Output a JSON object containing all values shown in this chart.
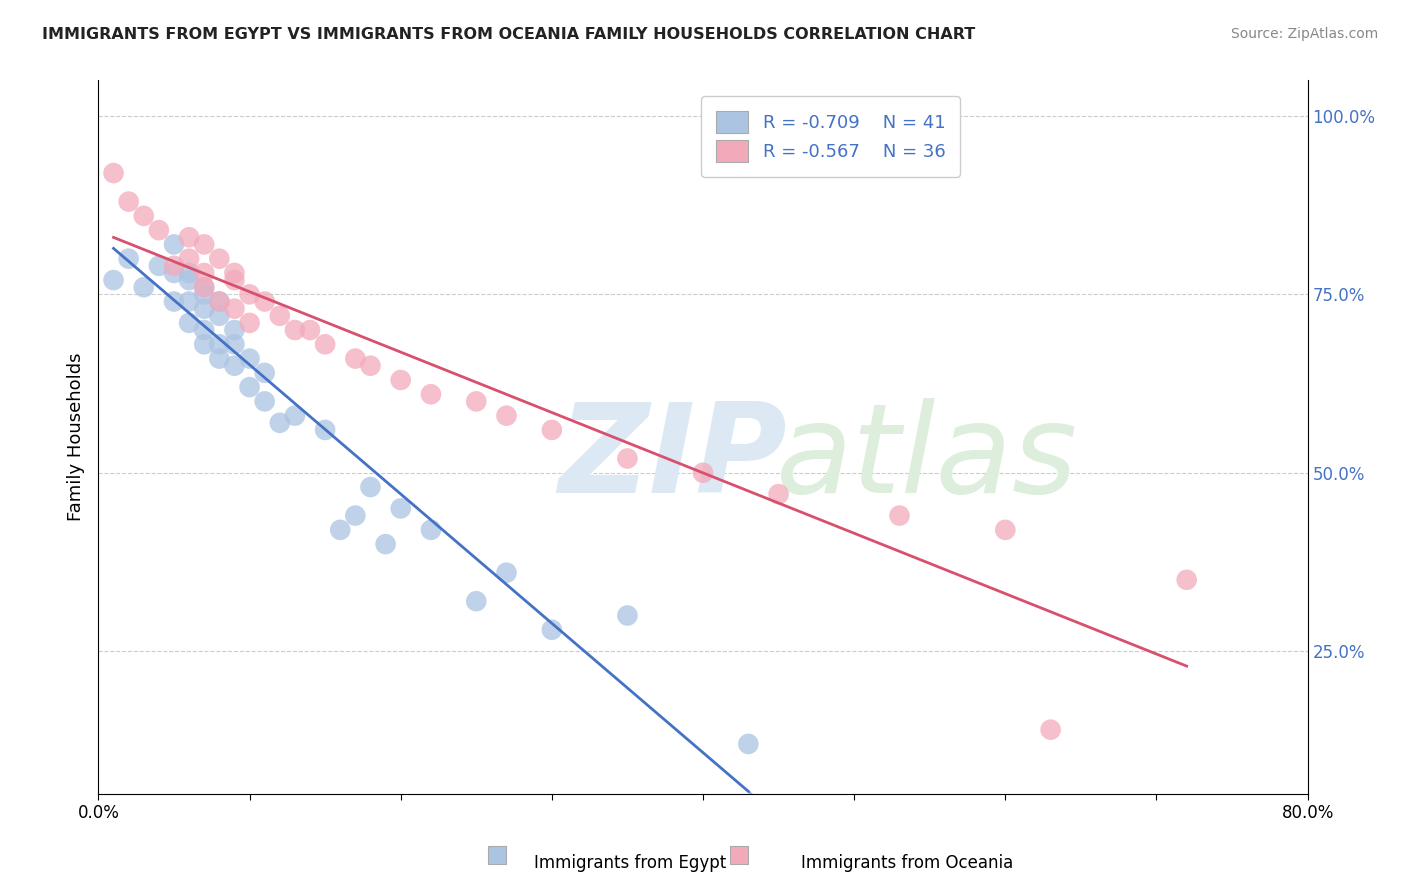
{
  "title": "IMMIGRANTS FROM EGYPT VS IMMIGRANTS FROM OCEANIA FAMILY HOUSEHOLDS CORRELATION CHART",
  "source": "Source: ZipAtlas.com",
  "ylabel": "Family Households",
  "ylabel_right": [
    "100.0%",
    "75.0%",
    "50.0%",
    "25.0%"
  ],
  "ylabel_right_vals": [
    1.0,
    0.75,
    0.5,
    0.25
  ],
  "xlim": [
    0.0,
    0.8
  ],
  "ylim": [
    0.05,
    1.05
  ],
  "egypt_R": -0.709,
  "egypt_N": 41,
  "oceania_R": -0.567,
  "oceania_N": 36,
  "egypt_color": "#aac4e2",
  "oceania_color": "#f2aabb",
  "egypt_line_color": "#4472c4",
  "oceania_line_color": "#d94f6e",
  "legend_label_egypt": "Immigrants from Egypt",
  "legend_label_oceania": "Immigrants from Oceania",
  "background_color": "#ffffff",
  "grid_color": "#cccccc",
  "egypt_x": [
    0.01,
    0.02,
    0.03,
    0.04,
    0.05,
    0.05,
    0.05,
    0.06,
    0.06,
    0.06,
    0.06,
    0.07,
    0.07,
    0.07,
    0.07,
    0.07,
    0.08,
    0.08,
    0.08,
    0.08,
    0.09,
    0.09,
    0.09,
    0.1,
    0.1,
    0.11,
    0.11,
    0.12,
    0.13,
    0.15,
    0.16,
    0.17,
    0.18,
    0.19,
    0.2,
    0.22,
    0.25,
    0.27,
    0.3,
    0.35,
    0.43
  ],
  "egypt_y": [
    0.77,
    0.8,
    0.76,
    0.79,
    0.78,
    0.82,
    0.74,
    0.77,
    0.74,
    0.78,
    0.71,
    0.76,
    0.73,
    0.7,
    0.75,
    0.68,
    0.72,
    0.68,
    0.74,
    0.66,
    0.7,
    0.65,
    0.68,
    0.66,
    0.62,
    0.64,
    0.6,
    0.57,
    0.58,
    0.56,
    0.42,
    0.44,
    0.48,
    0.4,
    0.45,
    0.42,
    0.32,
    0.36,
    0.28,
    0.3,
    0.12
  ],
  "oceania_x": [
    0.01,
    0.02,
    0.03,
    0.04,
    0.05,
    0.06,
    0.06,
    0.07,
    0.07,
    0.07,
    0.08,
    0.08,
    0.09,
    0.09,
    0.09,
    0.1,
    0.1,
    0.11,
    0.12,
    0.13,
    0.14,
    0.15,
    0.17,
    0.18,
    0.2,
    0.22,
    0.25,
    0.27,
    0.3,
    0.35,
    0.4,
    0.45,
    0.53,
    0.6,
    0.63,
    0.72
  ],
  "oceania_y": [
    0.92,
    0.88,
    0.86,
    0.84,
    0.79,
    0.83,
    0.8,
    0.78,
    0.82,
    0.76,
    0.8,
    0.74,
    0.77,
    0.73,
    0.78,
    0.75,
    0.71,
    0.74,
    0.72,
    0.7,
    0.7,
    0.68,
    0.66,
    0.65,
    0.63,
    0.61,
    0.6,
    0.58,
    0.56,
    0.52,
    0.5,
    0.47,
    0.44,
    0.42,
    0.14,
    0.35
  ]
}
